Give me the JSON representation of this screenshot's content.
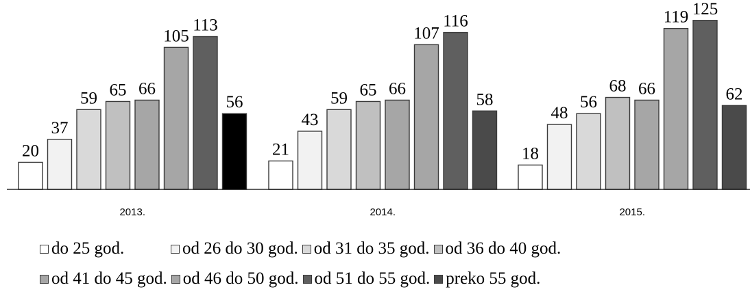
{
  "chart_data": {
    "type": "bar",
    "categories": [
      "2013.",
      "2014.",
      "2015."
    ],
    "ylim": [
      0,
      135
    ],
    "grid": false,
    "legend_position": "bottom",
    "series": [
      {
        "name": "do 25 god.",
        "color": "#ffffff",
        "values": [
          20,
          21,
          18
        ]
      },
      {
        "name": "od 26 do 30 god.",
        "color": "#f2f2f2",
        "values": [
          37,
          43,
          48
        ]
      },
      {
        "name": "od 31 do 35 god.",
        "color": "#d9d9d9",
        "values": [
          59,
          59,
          56
        ]
      },
      {
        "name": "od 36 do 40 god.",
        "color": "#c0c0c0",
        "values": [
          65,
          65,
          68
        ]
      },
      {
        "name": "od 41 do 45 god.",
        "color": "#a6a6a6",
        "values": [
          66,
          66,
          66
        ]
      },
      {
        "name": "od 46 do 50 god.",
        "color": "#a6a6a6",
        "values": [
          105,
          107,
          119
        ]
      },
      {
        "name": "od 51 do 55 god.",
        "color": "#5f5f5f",
        "values": [
          113,
          116,
          125
        ]
      },
      {
        "name": "preko 55 god.",
        "colors_by_category": [
          "#000000",
          "#4a4a4a",
          "#4a4a4a"
        ],
        "color": "#4a4a4a",
        "values": [
          56,
          58,
          62
        ]
      }
    ]
  }
}
